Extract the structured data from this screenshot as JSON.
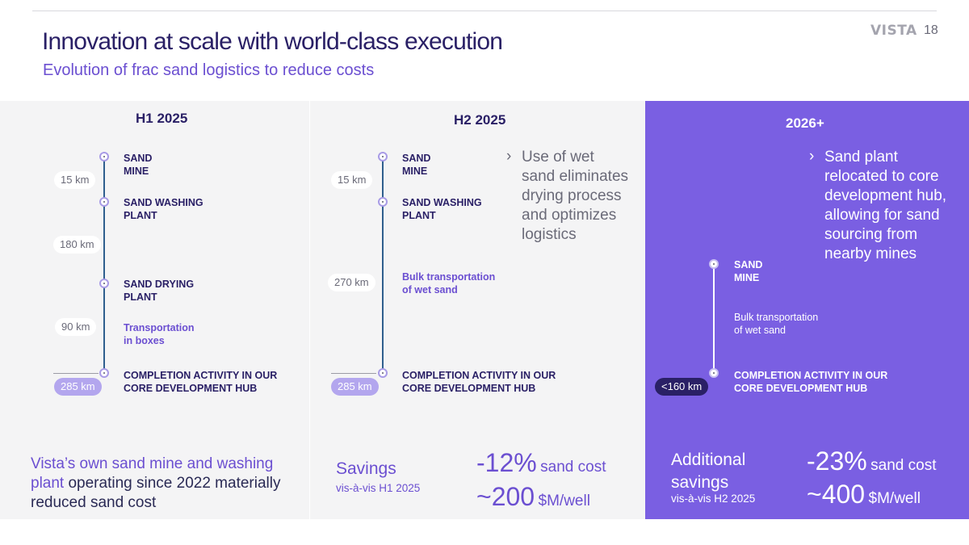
{
  "header": {
    "brand": "VISTA",
    "page_number": "18"
  },
  "title": "Innovation at scale with world-class execution",
  "subtitle": "Evolution of frac sand logistics to reduce costs",
  "panels": [
    {
      "heading": "H1 2025",
      "nodes": [
        {
          "label_1": "SAND",
          "label_2": "MINE"
        },
        {
          "label_1": "SAND WASHING",
          "label_2": "PLANT"
        },
        {
          "label_1": "SAND DRYING",
          "label_2": "PLANT"
        },
        {
          "label_1": "COMPLETION ACTIVITY IN OUR",
          "label_2": "CORE DEVELOPMENT HUB"
        }
      ],
      "transport": {
        "line_1": "Transportation",
        "line_2": "in boxes"
      },
      "distances": [
        "15 km",
        "180 km",
        "90 km"
      ],
      "total": "285 km",
      "note": {
        "highlight": "Vista’s own sand mine and washing plant",
        "rest": " operating since 2022 materially reduced sand cost"
      }
    },
    {
      "heading": "H2 2025",
      "nodes": [
        {
          "label_1": "SAND",
          "label_2": "MINE"
        },
        {
          "label_1": "SAND WASHING",
          "label_2": "PLANT"
        },
        {
          "label_1": "COMPLETION ACTIVITY IN OUR",
          "label_2": "CORE DEVELOPMENT HUB"
        }
      ],
      "transport": {
        "line_1": "Bulk transportation",
        "line_2": "of wet sand"
      },
      "distances": [
        "15 km",
        "270 km"
      ],
      "total": "285 km",
      "callout": [
        "Use of wet",
        "sand eliminates",
        "drying process",
        "and optimizes",
        "logistics"
      ],
      "savings_title": "Savings",
      "savings_sub": "vis-à-vis H1 2025",
      "metrics": [
        {
          "value": "-12%",
          "unit": "sand cost"
        },
        {
          "value": "~200",
          "unit": "$M/well"
        }
      ]
    },
    {
      "heading": "2026+",
      "nodes": [
        {
          "label_1": "SAND",
          "label_2": "MINE"
        },
        {
          "label_1": "COMPLETION ACTIVITY IN OUR",
          "label_2": "CORE DEVELOPMENT HUB"
        }
      ],
      "transport": {
        "line_1": "Bulk transportation",
        "line_2": "of wet sand"
      },
      "total": "<160 km",
      "callout": [
        "Sand plant",
        "relocated to core",
        "development hub,",
        "allowing for sand",
        "sourcing from",
        "nearby mines"
      ],
      "savings_title_1": "Additional",
      "savings_title_2": "savings",
      "savings_sub": "vis-à-vis H2 2025",
      "metrics": [
        {
          "value": "-23%",
          "unit": "sand cost"
        },
        {
          "value": "~400",
          "unit": "$M/well"
        }
      ]
    }
  ]
}
